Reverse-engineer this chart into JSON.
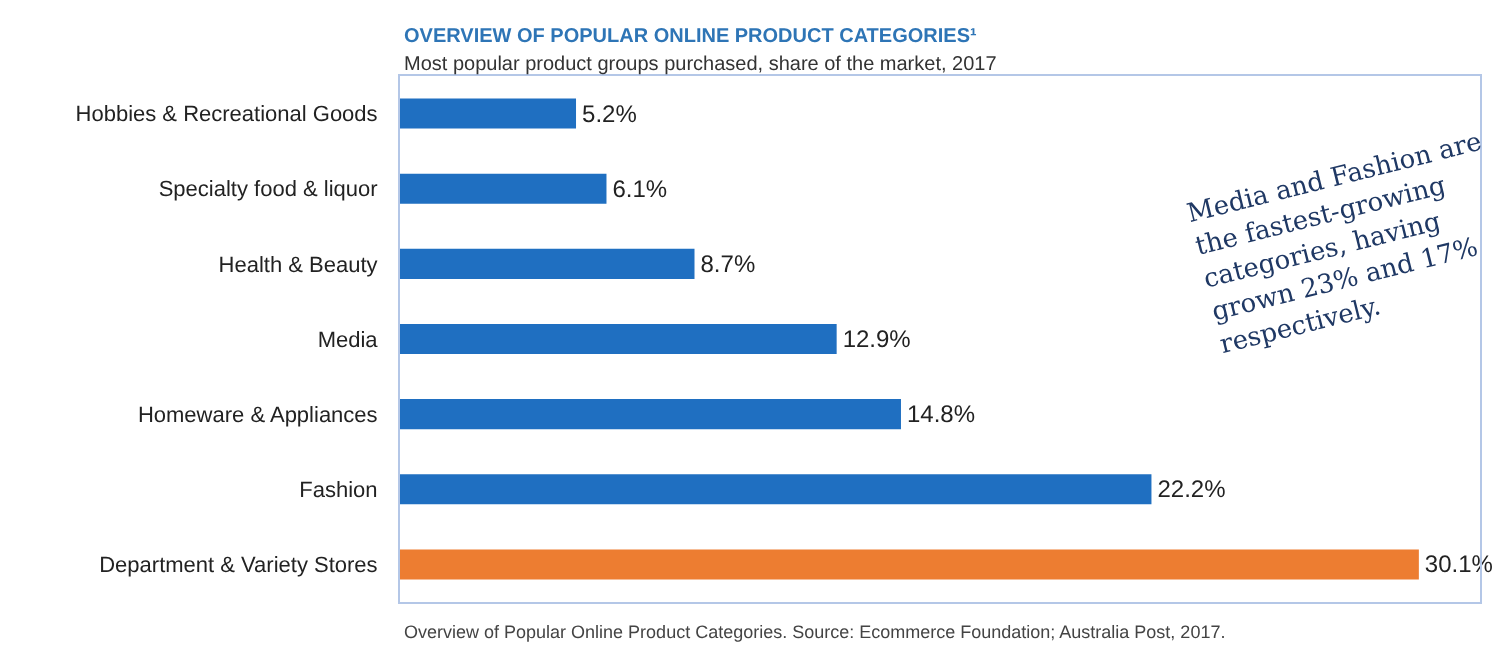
{
  "chart_data": {
    "type": "bar",
    "orientation": "horizontal",
    "title": "OVERVIEW OF POPULAR ONLINE PRODUCT CATEGORIES¹",
    "subtitle": "Most popular product groups purchased, share of the market, 2017",
    "categories": [
      "Hobbies & Recreational Goods",
      "Specialty food & liquor",
      "Health & Beauty",
      "Media",
      "Homeware & Appliances",
      "Fashion",
      "Department & Variety Stores"
    ],
    "values": [
      5.2,
      6.1,
      8.7,
      12.9,
      14.8,
      22.2,
      30.1
    ],
    "value_labels": [
      "5.2%",
      "6.1%",
      "8.7%",
      "12.9%",
      "14.8%",
      "22.2%",
      "30.1%"
    ],
    "colors": [
      "#1f6fc1",
      "#1f6fc1",
      "#1f6fc1",
      "#1f6fc1",
      "#1f6fc1",
      "#1f6fc1",
      "#ed7d31"
    ],
    "annotations": [
      "Media and Fashion are the fastest-growing categories, having grown 23% and 17% respectively.",
      "Overview of Popular Online Product Categories. Source: Ecommerce Foundation; Australia Post, 2017."
    ],
    "legend": false
  }
}
